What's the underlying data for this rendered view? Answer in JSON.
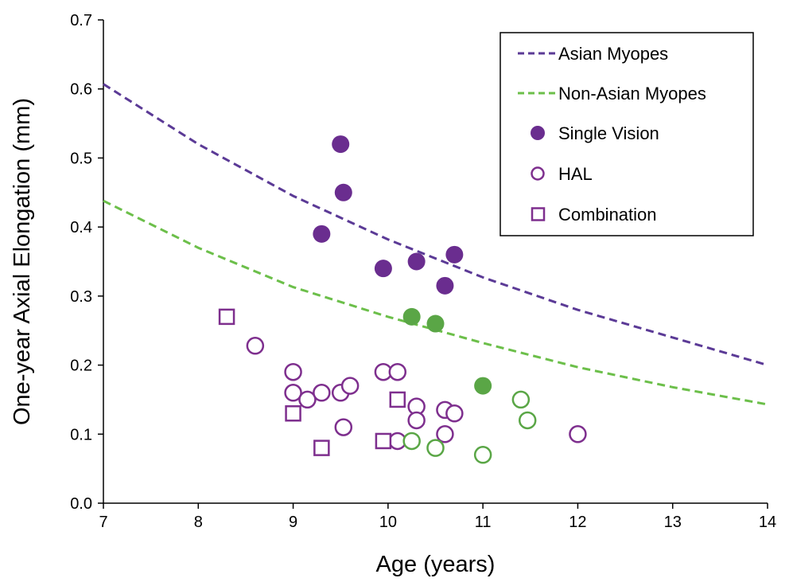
{
  "chart_data": {
    "type": "scatter",
    "xlabel": "Age (years)",
    "ylabel": "One-year Axial Elongation (mm)",
    "xlim": [
      7,
      14
    ],
    "ylim": [
      0,
      0.7
    ],
    "xticks": [
      "7",
      "8",
      "9",
      "10",
      "11",
      "12",
      "13",
      "14"
    ],
    "yticks": [
      "0.0",
      "0.1",
      "0.2",
      "0.3",
      "0.4",
      "0.5",
      "0.6",
      "0.7"
    ],
    "grid": false,
    "legend_position": "top-right",
    "colors": {
      "purple": "#6a2d8f",
      "purple_outline": "#7e2f8e",
      "green": "#5aa646",
      "line_purple": "#5b3a96",
      "line_green": "#6cbf4a"
    },
    "lines": [
      {
        "name": "Asian Myopes",
        "style": "dashed",
        "color": "#5b3a96",
        "x": [
          7,
          8,
          9,
          10,
          11,
          12,
          13,
          14
        ],
        "y": [
          0.607,
          0.52,
          0.445,
          0.382,
          0.327,
          0.28,
          0.24,
          0.2
        ]
      },
      {
        "name": "Non-Asian Myopes",
        "style": "dashed",
        "color": "#6cbf4a",
        "x": [
          7,
          8,
          9,
          10,
          11,
          12,
          13,
          14
        ],
        "y": [
          0.438,
          0.37,
          0.313,
          0.27,
          0.232,
          0.197,
          0.168,
          0.143
        ]
      }
    ],
    "series": [
      {
        "name": "Single Vision",
        "marker": "filled-circle",
        "points": [
          {
            "x": 9.3,
            "y": 0.39,
            "color": "#6a2d8f"
          },
          {
            "x": 9.5,
            "y": 0.52,
            "color": "#6a2d8f"
          },
          {
            "x": 9.53,
            "y": 0.45,
            "color": "#6a2d8f"
          },
          {
            "x": 9.95,
            "y": 0.34,
            "color": "#6a2d8f"
          },
          {
            "x": 10.3,
            "y": 0.35,
            "color": "#6a2d8f"
          },
          {
            "x": 10.6,
            "y": 0.315,
            "color": "#6a2d8f"
          },
          {
            "x": 10.7,
            "y": 0.36,
            "color": "#6a2d8f"
          },
          {
            "x": 10.25,
            "y": 0.27,
            "color": "#5aa646"
          },
          {
            "x": 10.5,
            "y": 0.26,
            "color": "#5aa646"
          },
          {
            "x": 11.0,
            "y": 0.17,
            "color": "#5aa646"
          }
        ]
      },
      {
        "name": "HAL",
        "marker": "open-circle",
        "points": [
          {
            "x": 8.6,
            "y": 0.228,
            "color": "#7e2f8e"
          },
          {
            "x": 9.0,
            "y": 0.19,
            "color": "#7e2f8e"
          },
          {
            "x": 9.0,
            "y": 0.16,
            "color": "#7e2f8e"
          },
          {
            "x": 9.15,
            "y": 0.15,
            "color": "#7e2f8e"
          },
          {
            "x": 9.3,
            "y": 0.16,
            "color": "#7e2f8e"
          },
          {
            "x": 9.5,
            "y": 0.16,
            "color": "#7e2f8e"
          },
          {
            "x": 9.6,
            "y": 0.17,
            "color": "#7e2f8e"
          },
          {
            "x": 9.53,
            "y": 0.11,
            "color": "#7e2f8e"
          },
          {
            "x": 9.95,
            "y": 0.19,
            "color": "#7e2f8e"
          },
          {
            "x": 10.1,
            "y": 0.19,
            "color": "#7e2f8e"
          },
          {
            "x": 10.1,
            "y": 0.09,
            "color": "#7e2f8e"
          },
          {
            "x": 10.3,
            "y": 0.14,
            "color": "#7e2f8e"
          },
          {
            "x": 10.3,
            "y": 0.12,
            "color": "#7e2f8e"
          },
          {
            "x": 10.6,
            "y": 0.135,
            "color": "#7e2f8e"
          },
          {
            "x": 10.7,
            "y": 0.13,
            "color": "#7e2f8e"
          },
          {
            "x": 10.6,
            "y": 0.1,
            "color": "#7e2f8e"
          },
          {
            "x": 12.0,
            "y": 0.1,
            "color": "#7e2f8e"
          },
          {
            "x": 10.25,
            "y": 0.09,
            "color": "#5aa646"
          },
          {
            "x": 10.5,
            "y": 0.08,
            "color": "#5aa646"
          },
          {
            "x": 11.0,
            "y": 0.07,
            "color": "#5aa646"
          },
          {
            "x": 11.4,
            "y": 0.15,
            "color": "#5aa646"
          },
          {
            "x": 11.47,
            "y": 0.12,
            "color": "#5aa646"
          }
        ]
      },
      {
        "name": "Combination",
        "marker": "open-square",
        "points": [
          {
            "x": 8.3,
            "y": 0.27,
            "color": "#7e2f8e"
          },
          {
            "x": 9.0,
            "y": 0.13,
            "color": "#7e2f8e"
          },
          {
            "x": 9.3,
            "y": 0.08,
            "color": "#7e2f8e"
          },
          {
            "x": 9.95,
            "y": 0.09,
            "color": "#7e2f8e"
          },
          {
            "x": 10.1,
            "y": 0.15,
            "color": "#7e2f8e"
          }
        ]
      }
    ],
    "legend": [
      {
        "label": "Asian Myopes",
        "kind": "dashed-line",
        "color": "#5b3a96"
      },
      {
        "label": "Non-Asian Myopes",
        "kind": "dashed-line",
        "color": "#6cbf4a"
      },
      {
        "label": "Single Vision",
        "kind": "filled-circle",
        "color": "#6a2d8f"
      },
      {
        "label": "HAL",
        "kind": "open-circle",
        "color": "#7e2f8e"
      },
      {
        "label": "Combination",
        "kind": "open-square",
        "color": "#7e2f8e"
      }
    ]
  }
}
